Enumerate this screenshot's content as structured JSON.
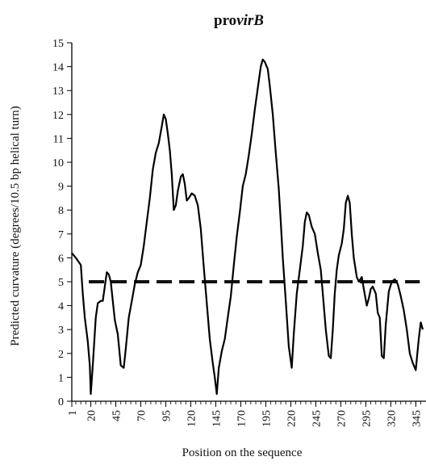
{
  "chart_data": {
    "type": "line",
    "title_plain": "pro",
    "title_italic": "virB",
    "xlabel": "Position on the sequence",
    "ylabel": "Predicted curvature (degrees/10.5 bp helical turn)",
    "xlim": [
      1,
      352
    ],
    "ylim": [
      0,
      15
    ],
    "y_ticks": [
      0,
      1,
      2,
      3,
      4,
      5,
      6,
      7,
      8,
      9,
      10,
      11,
      12,
      13,
      14,
      15
    ],
    "x_ticks": [
      1,
      20,
      45,
      70,
      95,
      120,
      145,
      170,
      195,
      220,
      245,
      270,
      295,
      320,
      345
    ],
    "threshold": {
      "value": 5.0,
      "style": "dashed"
    },
    "grid": false,
    "legend": "none",
    "colors": {
      "line": "#000000",
      "threshold": "#111111",
      "axis": "#000000"
    },
    "series": [
      {
        "points": [
          [
            1,
            6.2
          ],
          [
            5,
            6.0
          ],
          [
            10,
            5.7
          ],
          [
            12,
            4.5
          ],
          [
            14,
            3.5
          ],
          [
            17,
            2.5
          ],
          [
            19,
            1.5
          ],
          [
            20,
            0.3
          ],
          [
            22,
            1.5
          ],
          [
            25,
            3.5
          ],
          [
            27,
            4.1
          ],
          [
            30,
            4.2
          ],
          [
            32,
            4.2
          ],
          [
            34,
            4.8
          ],
          [
            36,
            5.4
          ],
          [
            38,
            5.3
          ],
          [
            40,
            5.0
          ],
          [
            42,
            4.2
          ],
          [
            44,
            3.4
          ],
          [
            47,
            2.8
          ],
          [
            50,
            1.5
          ],
          [
            53,
            1.4
          ],
          [
            55,
            2.2
          ],
          [
            58,
            3.5
          ],
          [
            61,
            4.2
          ],
          [
            64,
            4.9
          ],
          [
            67,
            5.4
          ],
          [
            70,
            5.7
          ],
          [
            73,
            6.5
          ],
          [
            76,
            7.5
          ],
          [
            79,
            8.5
          ],
          [
            82,
            9.7
          ],
          [
            85,
            10.4
          ],
          [
            88,
            10.8
          ],
          [
            91,
            11.5
          ],
          [
            93,
            12.0
          ],
          [
            95,
            11.8
          ],
          [
            97,
            11.2
          ],
          [
            99,
            10.5
          ],
          [
            101,
            9.5
          ],
          [
            103,
            8.0
          ],
          [
            105,
            8.2
          ],
          [
            107,
            8.8
          ],
          [
            110,
            9.4
          ],
          [
            112,
            9.5
          ],
          [
            114,
            9.1
          ],
          [
            116,
            8.4
          ],
          [
            118,
            8.5
          ],
          [
            121,
            8.7
          ],
          [
            124,
            8.6
          ],
          [
            127,
            8.2
          ],
          [
            130,
            7.2
          ],
          [
            133,
            5.6
          ],
          [
            136,
            4.1
          ],
          [
            139,
            2.6
          ],
          [
            142,
            1.6
          ],
          [
            144,
            1.0
          ],
          [
            146,
            0.3
          ],
          [
            148,
            1.4
          ],
          [
            151,
            2.1
          ],
          [
            154,
            2.6
          ],
          [
            157,
            3.5
          ],
          [
            160,
            4.4
          ],
          [
            163,
            5.7
          ],
          [
            166,
            6.9
          ],
          [
            169,
            7.9
          ],
          [
            172,
            9.0
          ],
          [
            175,
            9.5
          ],
          [
            178,
            10.3
          ],
          [
            181,
            11.2
          ],
          [
            184,
            12.2
          ],
          [
            187,
            13.1
          ],
          [
            190,
            14.0
          ],
          [
            192,
            14.3
          ],
          [
            194,
            14.2
          ],
          [
            197,
            13.9
          ],
          [
            199,
            13.2
          ],
          [
            202,
            12.0
          ],
          [
            205,
            10.4
          ],
          [
            208,
            8.9
          ],
          [
            210,
            7.5
          ],
          [
            212,
            6.0
          ],
          [
            215,
            4.2
          ],
          [
            218,
            2.3
          ],
          [
            221,
            1.4
          ],
          [
            223,
            2.8
          ],
          [
            226,
            4.5
          ],
          [
            229,
            5.5
          ],
          [
            232,
            6.5
          ],
          [
            234,
            7.5
          ],
          [
            236,
            7.9
          ],
          [
            238,
            7.8
          ],
          [
            241,
            7.3
          ],
          [
            244,
            7.0
          ],
          [
            247,
            6.2
          ],
          [
            250,
            5.5
          ],
          [
            252,
            4.5
          ],
          [
            255,
            3.0
          ],
          [
            258,
            1.9
          ],
          [
            260,
            1.8
          ],
          [
            262,
            3.0
          ],
          [
            264,
            4.5
          ],
          [
            266,
            5.5
          ],
          [
            268,
            6.1
          ],
          [
            271,
            6.6
          ],
          [
            273,
            7.2
          ],
          [
            275,
            8.3
          ],
          [
            277,
            8.6
          ],
          [
            279,
            8.3
          ],
          [
            281,
            7.0
          ],
          [
            283,
            6.0
          ],
          [
            286,
            5.2
          ],
          [
            288,
            5.0
          ],
          [
            291,
            5.2
          ],
          [
            293,
            4.7
          ],
          [
            296,
            4.0
          ],
          [
            298,
            4.3
          ],
          [
            300,
            4.7
          ],
          [
            302,
            4.8
          ],
          [
            305,
            4.5
          ],
          [
            307,
            3.7
          ],
          [
            309,
            3.5
          ],
          [
            311,
            1.9
          ],
          [
            313,
            1.8
          ],
          [
            315,
            3.2
          ],
          [
            318,
            4.6
          ],
          [
            321,
            5.0
          ],
          [
            324,
            5.1
          ],
          [
            327,
            4.9
          ],
          [
            330,
            4.4
          ],
          [
            333,
            3.8
          ],
          [
            336,
            3.0
          ],
          [
            339,
            2.0
          ],
          [
            342,
            1.6
          ],
          [
            345,
            1.3
          ],
          [
            348,
            2.6
          ],
          [
            350,
            3.3
          ],
          [
            352,
            3.0
          ]
        ]
      }
    ]
  }
}
